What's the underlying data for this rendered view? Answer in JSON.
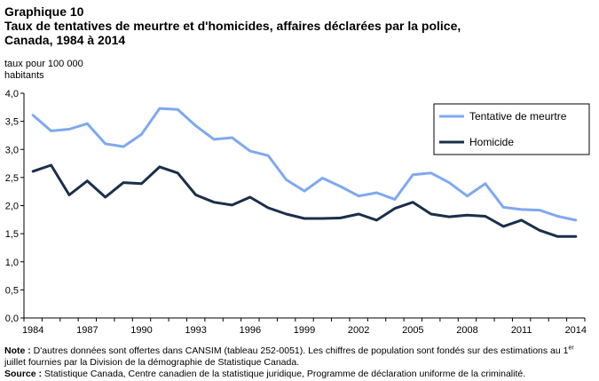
{
  "chart_data": {
    "type": "line",
    "title_label": "Graphique 10",
    "title": "Taux de tentatives de meurtre et d'homicides, affaires déclarées par la police, Canada, 1984 à 2014",
    "ylabel": "taux pour 100 000 habitants",
    "xlabel": "",
    "ylim": [
      0,
      4
    ],
    "yticks": [
      "0,0",
      "0,5",
      "1,0",
      "1,5",
      "2,0",
      "2,5",
      "3,0",
      "3,5",
      "4,0"
    ],
    "xticks": [
      "1984",
      "1987",
      "1990",
      "1993",
      "1996",
      "1999",
      "2002",
      "2005",
      "2008",
      "2011",
      "2014"
    ],
    "x": [
      1984,
      1985,
      1986,
      1987,
      1988,
      1989,
      1990,
      1991,
      1992,
      1993,
      1994,
      1995,
      1996,
      1997,
      1998,
      1999,
      2000,
      2001,
      2002,
      2003,
      2004,
      2005,
      2006,
      2007,
      2008,
      2009,
      2010,
      2011,
      2012,
      2013,
      2014
    ],
    "legend_position": "top-right",
    "grid": false,
    "series": [
      {
        "name": "Tentative de meurtre",
        "color": "#7fa8f0",
        "values": [
          3.61,
          3.33,
          3.36,
          3.46,
          3.1,
          3.05,
          3.27,
          3.73,
          3.71,
          3.42,
          3.18,
          3.21,
          2.97,
          2.89,
          2.46,
          2.26,
          2.49,
          2.34,
          2.17,
          2.23,
          2.11,
          2.55,
          2.58,
          2.41,
          2.17,
          2.39,
          1.97,
          1.93,
          1.92,
          1.81,
          1.74
        ]
      },
      {
        "name": "Homicide",
        "color": "#1a2f4a",
        "values": [
          2.61,
          2.72,
          2.19,
          2.44,
          2.15,
          2.41,
          2.39,
          2.69,
          2.58,
          2.19,
          2.06,
          2.01,
          2.15,
          1.96,
          1.85,
          1.77,
          1.77,
          1.78,
          1.85,
          1.74,
          1.95,
          2.06,
          1.85,
          1.8,
          1.83,
          1.81,
          1.63,
          1.74,
          1.56,
          1.45,
          1.45
        ]
      }
    ]
  },
  "notes": {
    "note_label": "Note :",
    "note_text_a": " D'autres  données sont offertes dans CANSIM (tableau 252-0051).  Les chiffres de population sont  fondés sur des estimations au 1",
    "note_sup": "er",
    "note_text_b": " juillet fournies par la Division de la démographie de Statistique Canada.",
    "source_label": "Source :",
    "source_text": " Statistique Canada, Centre canadien de la statistique juridique, Programme de déclaration uniforme de la criminalité."
  }
}
